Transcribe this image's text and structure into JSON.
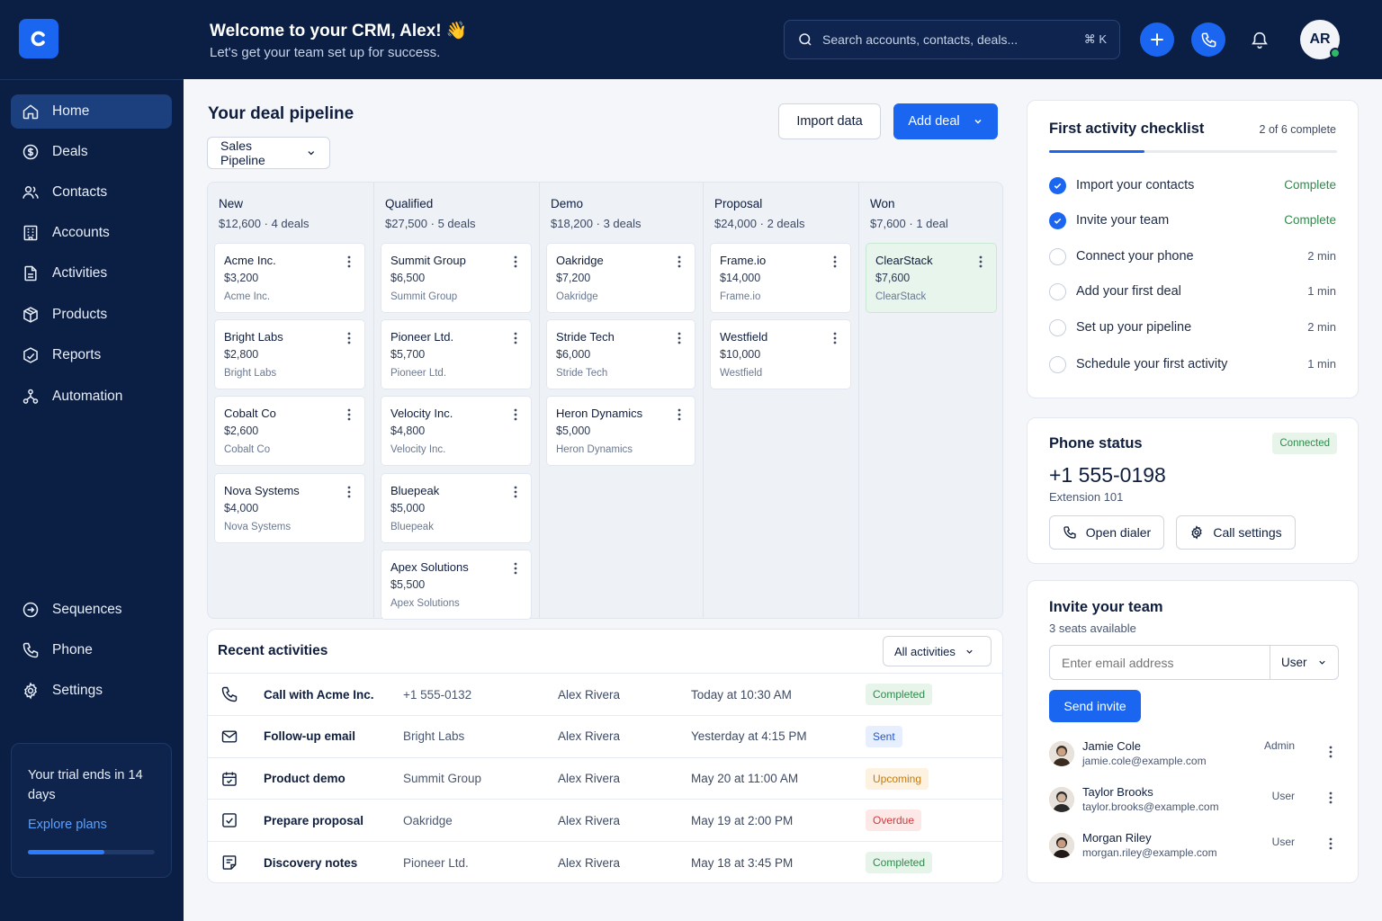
{
  "header": {
    "welcome": "Welcome to your CRM, Alex! 👋",
    "subtitle": "Let's get your team set up for success.",
    "search_placeholder": "Search accounts, contacts, deals...",
    "search_shortcut": "⌘ K",
    "avatar_initials": "AR",
    "accent": "#1a66f0"
  },
  "sidebar": {
    "items": [
      {
        "label": "Home",
        "icon": "home-icon"
      },
      {
        "label": "Deals",
        "icon": "dollar-icon"
      },
      {
        "label": "Contacts",
        "icon": "users-icon"
      },
      {
        "label": "Accounts",
        "icon": "building-icon"
      },
      {
        "label": "Activities",
        "icon": "document-icon"
      },
      {
        "label": "Products",
        "icon": "box-icon"
      },
      {
        "label": "Reports",
        "icon": "chart-icon"
      },
      {
        "label": "Automation",
        "icon": "automation-icon"
      }
    ],
    "bottom_items": [
      {
        "label": "Sequences",
        "icon": "sequence-icon"
      },
      {
        "label": "Phone",
        "icon": "phone-icon"
      },
      {
        "label": "Settings",
        "icon": "gear-icon"
      }
    ],
    "trial": {
      "text": "Your trial ends in 14 days",
      "link": "Explore plans",
      "progress": 0.6
    }
  },
  "pipeline": {
    "title": "Your deal pipeline",
    "import_label": "Import data",
    "add_label": "Add deal",
    "selected": "Sales Pipeline",
    "columns": [
      {
        "name": "New",
        "total": "$12,600",
        "count": "4 deals",
        "cards": [
          {
            "name": "Acme Inc.",
            "amount": "$3,200",
            "company": "Acme Inc."
          },
          {
            "name": "Bright Labs",
            "amount": "$2,800",
            "company": "Bright Labs"
          },
          {
            "name": "Cobalt Co",
            "amount": "$2,600",
            "company": "Cobalt Co"
          },
          {
            "name": "Nova Systems",
            "amount": "$4,000",
            "company": "Nova Systems"
          }
        ]
      },
      {
        "name": "Qualified",
        "total": "$27,500",
        "count": "5 deals",
        "cards": [
          {
            "name": "Summit Group",
            "amount": "$6,500",
            "company": "Summit Group"
          },
          {
            "name": "Pioneer Ltd.",
            "amount": "$5,700",
            "company": "Pioneer Ltd."
          },
          {
            "name": "Velocity Inc.",
            "amount": "$4,800",
            "company": "Velocity Inc."
          },
          {
            "name": "Bluepeak",
            "amount": "$5,000",
            "company": "Bluepeak"
          },
          {
            "name": "Apex Solutions",
            "amount": "$5,500",
            "company": "Apex Solutions"
          }
        ]
      },
      {
        "name": "Demo",
        "total": "$18,200",
        "count": "3 deals",
        "cards": [
          {
            "name": "Oakridge",
            "amount": "$7,200",
            "company": "Oakridge"
          },
          {
            "name": "Stride Tech",
            "amount": "$6,000",
            "company": "Stride Tech"
          },
          {
            "name": "Heron Dynamics",
            "amount": "$5,000",
            "company": "Heron Dynamics"
          }
        ]
      },
      {
        "name": "Proposal",
        "total": "$24,000",
        "count": "2 deals",
        "cards": [
          {
            "name": "Frame.io",
            "amount": "$14,000",
            "company": "Frame.io"
          },
          {
            "name": "Westfield",
            "amount": "$10,000",
            "company": "Westfield"
          }
        ]
      },
      {
        "name": "Won",
        "total": "$7,600",
        "count": "1 deal",
        "cards": [
          {
            "name": "ClearStack",
            "amount": "$7,600",
            "company": "ClearStack"
          }
        ]
      }
    ]
  },
  "activities": {
    "title": "Recent activities",
    "filter": "All activities",
    "rows": [
      {
        "icon": "phone-icon",
        "title": "Call with Acme Inc.",
        "related": "+1 555-0132",
        "owner": "Alex Rivera",
        "when": "Today at 10:30 AM",
        "status": "Completed",
        "status_bg": "#e6f4ea",
        "status_fg": "#2f8a4c"
      },
      {
        "icon": "mail-icon",
        "title": "Follow-up email",
        "related": "Bright Labs",
        "owner": "Alex Rivera",
        "when": "Yesterday at 4:15 PM",
        "status": "Sent",
        "status_bg": "#e7efff",
        "status_fg": "#2357c9"
      },
      {
        "icon": "calendar-icon",
        "title": "Product demo",
        "related": "Summit Group",
        "owner": "Alex Rivera",
        "when": "May 20 at 11:00 AM",
        "status": "Upcoming",
        "status_bg": "#fdf1df",
        "status_fg": "#c27a12"
      },
      {
        "icon": "checkbox-icon",
        "title": "Prepare proposal",
        "related": "Oakridge",
        "owner": "Alex Rivera",
        "when": "May 19 at 2:00 PM",
        "status": "Overdue",
        "status_bg": "#fde8e8",
        "status_fg": "#cf3b3b"
      },
      {
        "icon": "note-icon",
        "title": "Discovery notes",
        "related": "Pioneer Ltd.",
        "owner": "Alex Rivera",
        "when": "May 18 at 3:45 PM",
        "status": "Completed",
        "status_bg": "#e6f4ea",
        "status_fg": "#2f8a4c"
      }
    ]
  },
  "checklist": {
    "title": "First activity checklist",
    "progress_text": "2 of 6 complete",
    "progress": 0.33,
    "items": [
      {
        "label": "Import your contacts",
        "right": "Complete",
        "done": true
      },
      {
        "label": "Invite your team",
        "right": "Complete",
        "done": true
      },
      {
        "label": "Connect your phone",
        "right": "2 min",
        "done": false
      },
      {
        "label": "Add your first deal",
        "right": "1 min",
        "done": false
      },
      {
        "label": "Set up your pipeline",
        "right": "2 min",
        "done": false
      },
      {
        "label": "Schedule your first activity",
        "right": "1 min",
        "done": false
      }
    ]
  },
  "phone": {
    "title": "Phone status",
    "status": "Connected",
    "number": "+1 555-0198",
    "extension": "Extension 101",
    "open_dialer": "Open dialer",
    "call_settings": "Call settings"
  },
  "invite": {
    "title": "Invite your team",
    "seats": "3 seats available",
    "email_placeholder": "Enter email address",
    "role": "User",
    "send_label": "Send invite",
    "members": [
      {
        "name": "Jamie Cole",
        "email": "jamie.cole@example.com",
        "role": "Admin"
      },
      {
        "name": "Taylor Brooks",
        "email": "taylor.brooks@example.com",
        "role": "User"
      },
      {
        "name": "Morgan Riley",
        "email": "morgan.riley@example.com",
        "role": "User"
      }
    ]
  }
}
